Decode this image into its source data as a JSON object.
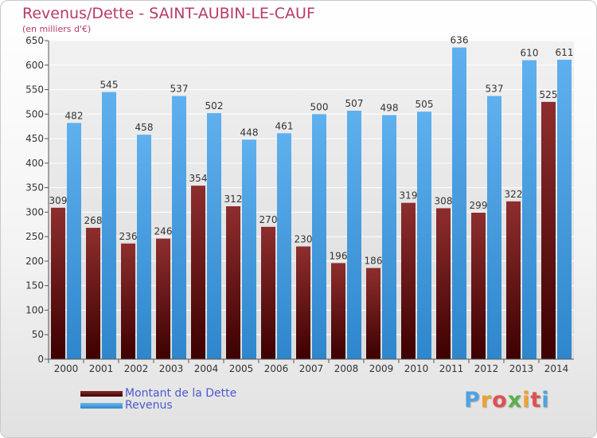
{
  "header": {
    "title": "Revenus/Dette - SAINT-AUBIN-LE-CAUF",
    "subtitle": "(en milliers d'€)"
  },
  "legend": {
    "items": [
      {
        "label": "Montant de la Dette",
        "color": "#6b1a1a"
      },
      {
        "label": "Revenus",
        "color": "#4ea3e4"
      }
    ]
  },
  "logo": {
    "text": "Proxiti",
    "letters": [
      {
        "ch": "P",
        "color": "#4fa3e0"
      },
      {
        "ch": "r",
        "color": "#f0a030"
      },
      {
        "ch": "o",
        "color": "#e05050"
      },
      {
        "ch": "x",
        "color": "#5ab04a"
      },
      {
        "ch": "i",
        "color": "#f0a030"
      },
      {
        "ch": "t",
        "color": "#e05050"
      },
      {
        "ch": "i",
        "color": "#4fa3e0"
      }
    ]
  },
  "chart_data": {
    "type": "bar",
    "title": "Revenus/Dette - SAINT-AUBIN-LE-CAUF",
    "ylabel": "(en milliers d'€)",
    "categories": [
      "2000",
      "2001",
      "2002",
      "2003",
      "2004",
      "2005",
      "2006",
      "2007",
      "2008",
      "2009",
      "2010",
      "2011",
      "2012",
      "2013",
      "2014"
    ],
    "series": [
      {
        "name": "Montant de la Dette",
        "color": "#6b1a1a",
        "values": [
          309,
          268,
          236,
          246,
          354,
          312,
          270,
          230,
          196,
          186,
          319,
          308,
          299,
          322,
          525
        ]
      },
      {
        "name": "Revenus",
        "color": "#4ea3e4",
        "values": [
          482,
          545,
          458,
          537,
          502,
          448,
          461,
          500,
          507,
          498,
          505,
          636,
          537,
          610,
          611
        ]
      }
    ],
    "ylim": [
      0,
      650
    ],
    "yticks": [
      0,
      50,
      100,
      150,
      200,
      250,
      300,
      350,
      400,
      450,
      500,
      550,
      600,
      650
    ],
    "grid": true,
    "legend_position": "bottom-left"
  }
}
